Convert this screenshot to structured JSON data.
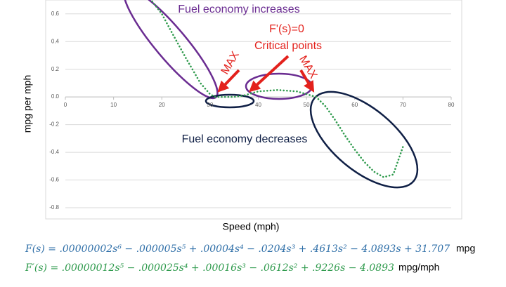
{
  "chart_data": {
    "type": "line",
    "x_label": "Speed (mph)",
    "y_label": "mpg per mph",
    "series": [
      {
        "name": "F'(s)",
        "color": "#2e9a4c",
        "x": [
          18,
          20,
          22,
          25,
          28,
          30,
          31,
          33,
          35,
          37,
          40,
          44,
          48,
          50,
          52,
          54,
          56,
          58,
          60,
          62,
          64,
          66,
          68,
          70
        ],
        "values": [
          0.69,
          0.6,
          0.47,
          0.28,
          0.1,
          0.02,
          0.0,
          0.0,
          0.0,
          0.01,
          0.04,
          0.05,
          0.04,
          0.02,
          0.0,
          -0.07,
          -0.17,
          -0.28,
          -0.38,
          -0.47,
          -0.54,
          -0.58,
          -0.56,
          -0.36
        ]
      }
    ],
    "xlim": [
      0,
      80
    ],
    "xticks": [
      0,
      10,
      20,
      30,
      40,
      50,
      60,
      70,
      80
    ],
    "ylim": [
      -0.8,
      0.7
    ],
    "yticks": [
      {
        "value": -0.8,
        "label": "-0.8"
      },
      {
        "value": -0.6,
        "label": "-0.6"
      },
      {
        "value": -0.4,
        "label": "-0.4"
      },
      {
        "value": -0.2,
        "label": "-0.2"
      },
      {
        "value": 0,
        "label": "0.0"
      },
      {
        "value": 0.2,
        "label": "0.2"
      },
      {
        "value": 0.4,
        "label": "0.4"
      },
      {
        "value": 0.6,
        "label": "0.6"
      }
    ],
    "grid": true,
    "annotations": [
      "Fuel economy increases",
      "F'(s)=0",
      "Critical points",
      "MAX",
      "MAX",
      "Fuel economy decreases"
    ],
    "formulas": [
      {
        "text": "F(s) = .00000002s⁶ − .000005s⁵ + .00004s⁴ − .0204s³ + .4613s² − 4.0893s + 31.707",
        "unit": "mpg"
      },
      {
        "text": "F′(s) = .00000012s⁵ − .000025s⁴ + .00016s³ − .0612s² + .9226s − 4.0893",
        "unit": "mpg/mph"
      }
    ]
  }
}
